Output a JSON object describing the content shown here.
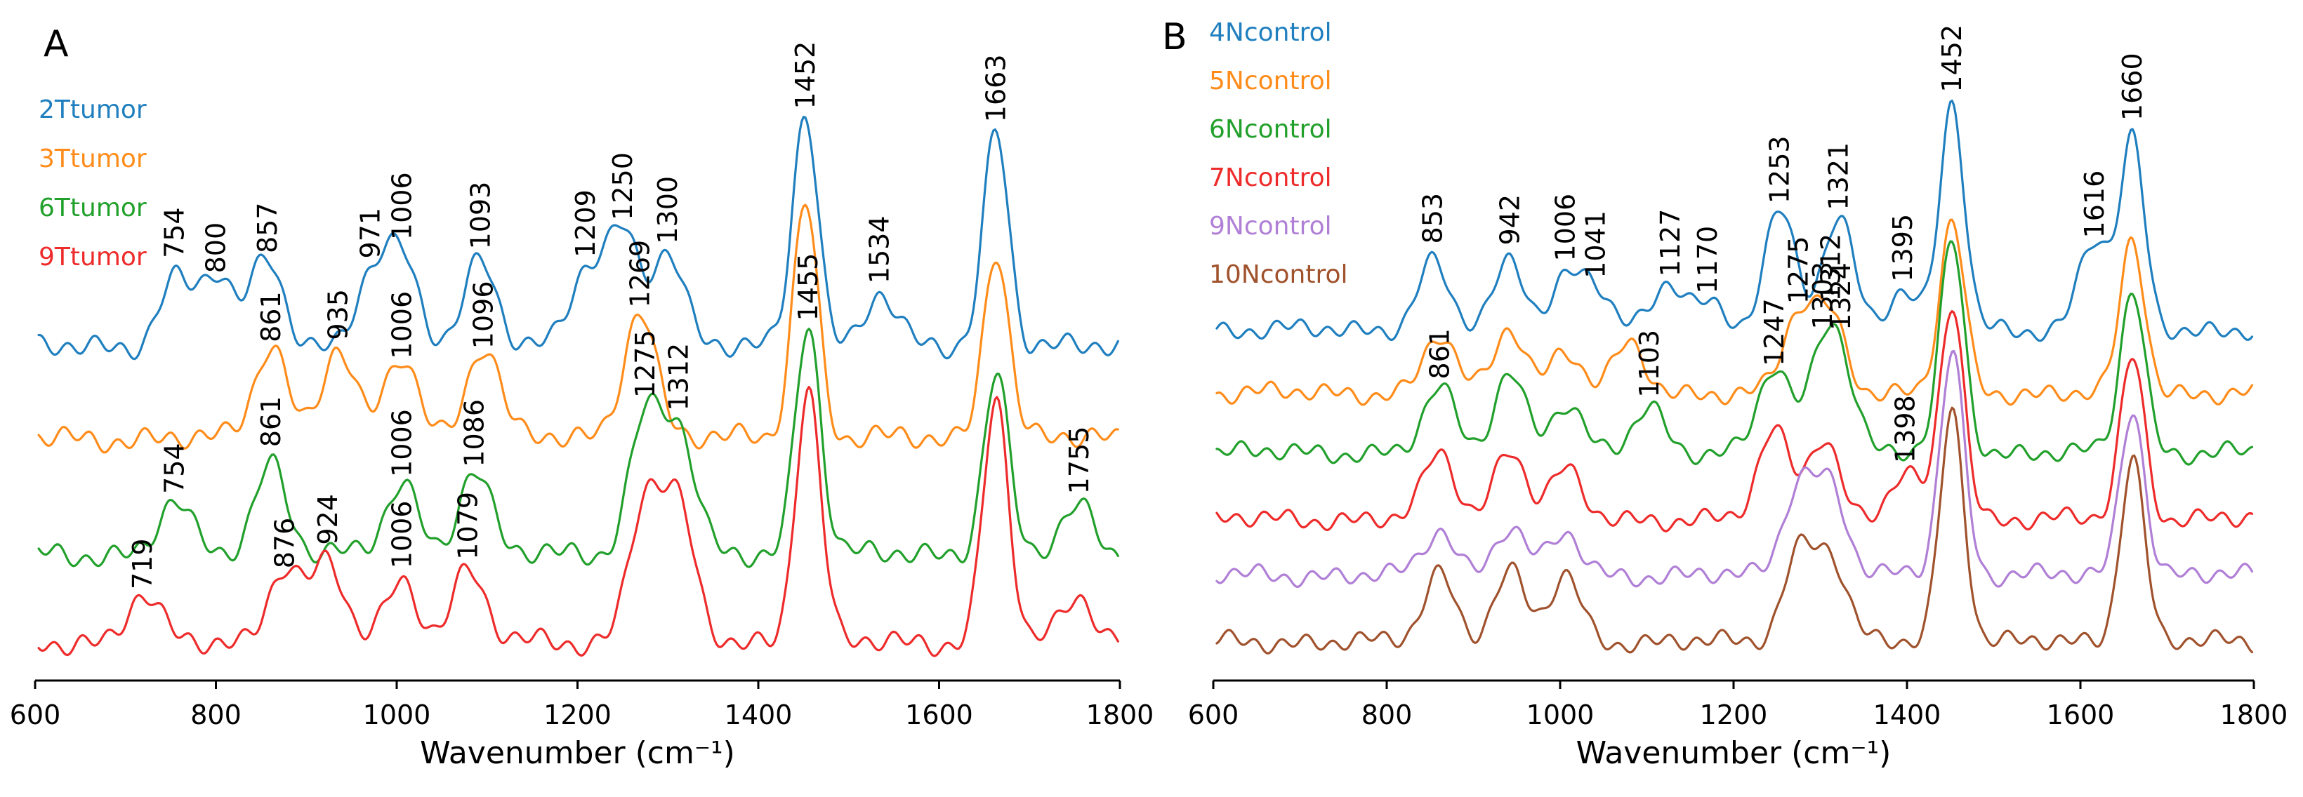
{
  "chart_data": [
    {
      "type": "line",
      "panel_label": "A",
      "xlabel": "Wavenumber (cm⁻¹)",
      "xlim": [
        600,
        1800
      ],
      "xticks": [
        600,
        800,
        1000,
        1200,
        1400,
        1600,
        1800
      ],
      "grid": false,
      "legend": "top-left",
      "series": [
        {
          "name": "2Ttumor",
          "color": "#1f7fbf",
          "peaks": [
            {
              "x": 754,
              "h": 0.28
            },
            {
              "x": 800,
              "h": 0.3
            },
            {
              "x": 857,
              "h": 0.38
            },
            {
              "x": 971,
              "h": 0.28
            },
            {
              "x": 1006,
              "h": 0.36
            },
            {
              "x": 1093,
              "h": 0.38
            },
            {
              "x": 1209,
              "h": 0.3
            },
            {
              "x": 1250,
              "h": 0.48
            },
            {
              "x": 1300,
              "h": 0.4
            },
            {
              "x": 1452,
              "h": 1.0
            },
            {
              "x": 1534,
              "h": 0.22
            },
            {
              "x": 1663,
              "h": 0.92
            }
          ],
          "labels": [
            "754",
            "800",
            "857",
            "971",
            "1006",
            "1093",
            "1209",
            "1250",
            "1300",
            "1452",
            "1534",
            "1663"
          ]
        },
        {
          "name": "3Ttumor",
          "color": "#ff8c1a",
          "peaks": [
            {
              "x": 861,
              "h": 0.4
            },
            {
              "x": 935,
              "h": 0.38
            },
            {
              "x": 1006,
              "h": 0.34
            },
            {
              "x": 1096,
              "h": 0.4
            },
            {
              "x": 1269,
              "h": 0.55
            },
            {
              "x": 1452,
              "h": 1.0
            },
            {
              "x": 1663,
              "h": 0.8
            }
          ],
          "labels": [
            "861",
            "935",
            "1006",
            "1096",
            "1269"
          ]
        },
        {
          "name": "6Ttumor",
          "color": "#22a02c",
          "peaks": [
            {
              "x": 754,
              "h": 0.22
            },
            {
              "x": 861,
              "h": 0.4
            },
            {
              "x": 1006,
              "h": 0.3
            },
            {
              "x": 1086,
              "h": 0.36
            },
            {
              "x": 1275,
              "h": 0.58
            },
            {
              "x": 1312,
              "h": 0.5
            },
            {
              "x": 1455,
              "h": 1.0
            },
            {
              "x": 1663,
              "h": 0.78
            },
            {
              "x": 1755,
              "h": 0.2
            }
          ],
          "labels": [
            "754",
            "861",
            "1006",
            "1086",
            "1275",
            "1312",
            "1455",
            "1755"
          ]
        },
        {
          "name": "9Ttumor",
          "color": "#ee2b2b",
          "peaks": [
            {
              "x": 719,
              "h": 0.18
            },
            {
              "x": 876,
              "h": 0.3
            },
            {
              "x": 924,
              "h": 0.3
            },
            {
              "x": 1006,
              "h": 0.24
            },
            {
              "x": 1079,
              "h": 0.28
            },
            {
              "x": 1275,
              "h": 0.55
            },
            {
              "x": 1312,
              "h": 0.5
            },
            {
              "x": 1455,
              "h": 1.0
            },
            {
              "x": 1663,
              "h": 0.95
            },
            {
              "x": 1755,
              "h": 0.18
            }
          ],
          "labels": [
            "719",
            "876",
            "924",
            "1006",
            "1079"
          ]
        }
      ]
    },
    {
      "type": "line",
      "panel_label": "B",
      "xlabel": "Wavenumber (cm⁻¹)",
      "xlim": [
        600,
        1800
      ],
      "xticks": [
        600,
        800,
        1000,
        1200,
        1400,
        1600,
        1800
      ],
      "grid": false,
      "legend": "top-left",
      "series": [
        {
          "name": "4Ncontrol",
          "color": "#1f7fbf",
          "peaks": [
            {
              "x": 853,
              "h": 0.3
            },
            {
              "x": 942,
              "h": 0.3
            },
            {
              "x": 1006,
              "h": 0.22
            },
            {
              "x": 1041,
              "h": 0.18
            },
            {
              "x": 1127,
              "h": 0.2
            },
            {
              "x": 1170,
              "h": 0.12
            },
            {
              "x": 1253,
              "h": 0.52
            },
            {
              "x": 1321,
              "h": 0.5
            },
            {
              "x": 1395,
              "h": 0.18
            },
            {
              "x": 1452,
              "h": 1.0
            },
            {
              "x": 1616,
              "h": 0.4
            },
            {
              "x": 1660,
              "h": 0.82
            }
          ],
          "labels": [
            "853",
            "942",
            "1006",
            "1041",
            "1127",
            "1170",
            "1253",
            "1321",
            "1395",
            "1452",
            "1616",
            "1660"
          ]
        },
        {
          "name": "5Ncontrol",
          "color": "#ff8c1a",
          "peaks": [
            {
              "x": 861,
              "h": 0.3
            },
            {
              "x": 942,
              "h": 0.35
            },
            {
              "x": 1006,
              "h": 0.22
            },
            {
              "x": 1080,
              "h": 0.25
            },
            {
              "x": 1275,
              "h": 0.4
            },
            {
              "x": 1312,
              "h": 0.4
            },
            {
              "x": 1452,
              "h": 0.9
            },
            {
              "x": 1660,
              "h": 0.8
            }
          ],
          "labels": [
            "1275",
            "1312"
          ]
        },
        {
          "name": "6Ncontrol",
          "color": "#22a02c",
          "peaks": [
            {
              "x": 861,
              "h": 0.3
            },
            {
              "x": 942,
              "h": 0.38
            },
            {
              "x": 1006,
              "h": 0.22
            },
            {
              "x": 1103,
              "h": 0.22
            },
            {
              "x": 1247,
              "h": 0.4
            },
            {
              "x": 1303,
              "h": 0.4
            },
            {
              "x": 1324,
              "h": 0.35
            },
            {
              "x": 1452,
              "h": 1.0
            },
            {
              "x": 1660,
              "h": 0.78
            }
          ],
          "labels": [
            "861",
            "1103",
            "1247",
            "1303",
            "1324"
          ]
        },
        {
          "name": "7Ncontrol",
          "color": "#ee2b2b",
          "peaks": [
            {
              "x": 861,
              "h": 0.3
            },
            {
              "x": 942,
              "h": 0.32
            },
            {
              "x": 1006,
              "h": 0.22
            },
            {
              "x": 1247,
              "h": 0.4
            },
            {
              "x": 1303,
              "h": 0.38
            },
            {
              "x": 1398,
              "h": 0.2
            },
            {
              "x": 1452,
              "h": 1.0
            },
            {
              "x": 1660,
              "h": 0.75
            }
          ],
          "labels": [
            "1398"
          ]
        },
        {
          "name": "9Ncontrol",
          "color": "#b07fd6",
          "peaks": [
            {
              "x": 861,
              "h": 0.2
            },
            {
              "x": 942,
              "h": 0.22
            },
            {
              "x": 1006,
              "h": 0.18
            },
            {
              "x": 1275,
              "h": 0.4
            },
            {
              "x": 1312,
              "h": 0.38
            },
            {
              "x": 1452,
              "h": 1.0
            },
            {
              "x": 1660,
              "h": 0.75
            }
          ],
          "labels": []
        },
        {
          "name": "10Ncontrol",
          "color": "#a0522d",
          "peaks": [
            {
              "x": 861,
              "h": 0.3
            },
            {
              "x": 942,
              "h": 0.3
            },
            {
              "x": 1006,
              "h": 0.28
            },
            {
              "x": 1275,
              "h": 0.38
            },
            {
              "x": 1312,
              "h": 0.35
            },
            {
              "x": 1452,
              "h": 1.0
            },
            {
              "x": 1660,
              "h": 0.8
            }
          ],
          "labels": []
        }
      ]
    }
  ]
}
